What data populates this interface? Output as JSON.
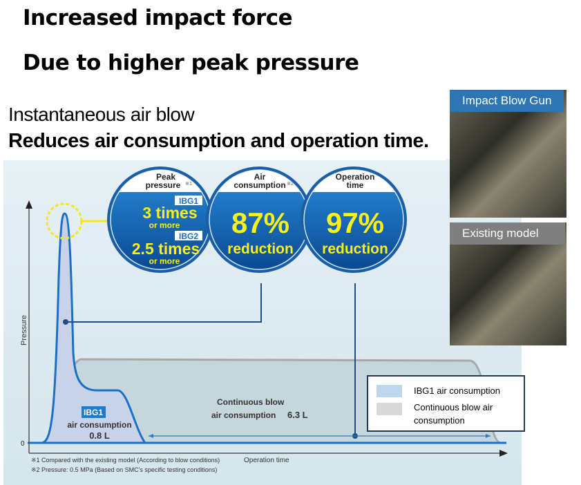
{
  "title_line1": "Increased impact force",
  "title_line2": "Due to higher peak pressure",
  "subtitle": "Instantaneous air blow",
  "subtitle_bold": "Reduces air consumption and operation time.",
  "circles": [
    {
      "header1": "Peak",
      "header2": "pressure",
      "note": "※1",
      "ibg1_tag": "IBG1",
      "ibg1_value": "3 times",
      "ibg1_sub": "or more",
      "ibg2_tag": "IBG2",
      "ibg2_value": "2.5 times",
      "ibg2_sub": "or more"
    },
    {
      "header1": "Air",
      "header2": "consumption",
      "note": "※2",
      "value": "87%",
      "sub": "reduction"
    },
    {
      "header1": "Operation",
      "header2": "time",
      "value": "97%",
      "sub": "reduction"
    }
  ],
  "chart": {
    "y_label": "Pressure",
    "x_label": "Operation time",
    "zero": "0",
    "ibg1_tag": "IBG1",
    "ibg1_label": "air consumption",
    "ibg1_value": "0.8 L",
    "cont_label1": "Continuous blow",
    "cont_label2": "air consumption",
    "cont_value": "6.3 L",
    "footnote1": "※1  Compared with the existing model (According to blow conditions)",
    "footnote2": "※2  Pressure: 0.5 MPa (Based on SMC's specific testing conditions)"
  },
  "legend": [
    {
      "label": "IBG1 air consumption",
      "color": "#bdd7ee"
    },
    {
      "label": "Continuous blow air consumption",
      "color": "#d9d9d9"
    }
  ],
  "photos": [
    {
      "label": "Impact Blow Gun",
      "color": "#2e75b6"
    },
    {
      "label": "Existing model",
      "color": "#7f7f7f"
    }
  ]
}
